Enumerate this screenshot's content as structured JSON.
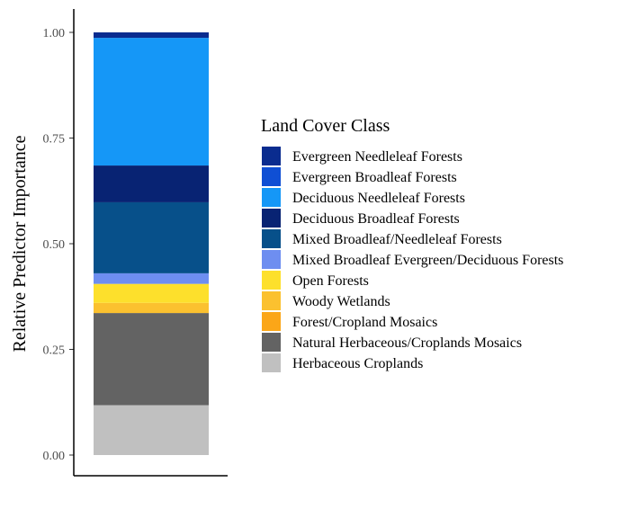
{
  "chart_data": {
    "type": "bar",
    "stacked": true,
    "categories": [
      ""
    ],
    "ylabel": "Relative Predictor Importance",
    "xlabel": "",
    "ylim": [
      0,
      1.0
    ],
    "yticks": [
      "0.00",
      "0.25",
      "0.50",
      "0.75",
      "1.00"
    ],
    "legend_title": "Land Cover Class",
    "legend_position": "right",
    "series": [
      {
        "name": "Evergreen Needleleaf Forests",
        "color": "#0A2C8F",
        "value": 0.013
      },
      {
        "name": "Evergreen Broadleaf Forests",
        "color": "#0F4FD4",
        "value": 0.0
      },
      {
        "name": "Deciduous Needleleaf Forests",
        "color": "#1597F7",
        "value": 0.302
      },
      {
        "name": "Deciduous Broadleaf Forests",
        "color": "#082373",
        "value": 0.087
      },
      {
        "name": "Mixed Broadleaf/Needleleaf Forests",
        "color": "#07508A",
        "value": 0.168
      },
      {
        "name": "Mixed Broadleaf Evergreen/Deciduous Forests",
        "color": "#6E8EF0",
        "value": 0.025
      },
      {
        "name": "Open Forests",
        "color": "#FDE02C",
        "value": 0.045
      },
      {
        "name": "Woody Wetlands",
        "color": "#FBC12F",
        "value": 0.024
      },
      {
        "name": "Forest/Cropland Mosaics",
        "color": "#FBA618",
        "value": 0.0
      },
      {
        "name": "Natural Herbaceous/Croplands Mosaics",
        "color": "#636363",
        "value": 0.218
      },
      {
        "name": "Herbaceous Croplands",
        "color": "#C0C0C0",
        "value": 0.118
      }
    ]
  }
}
